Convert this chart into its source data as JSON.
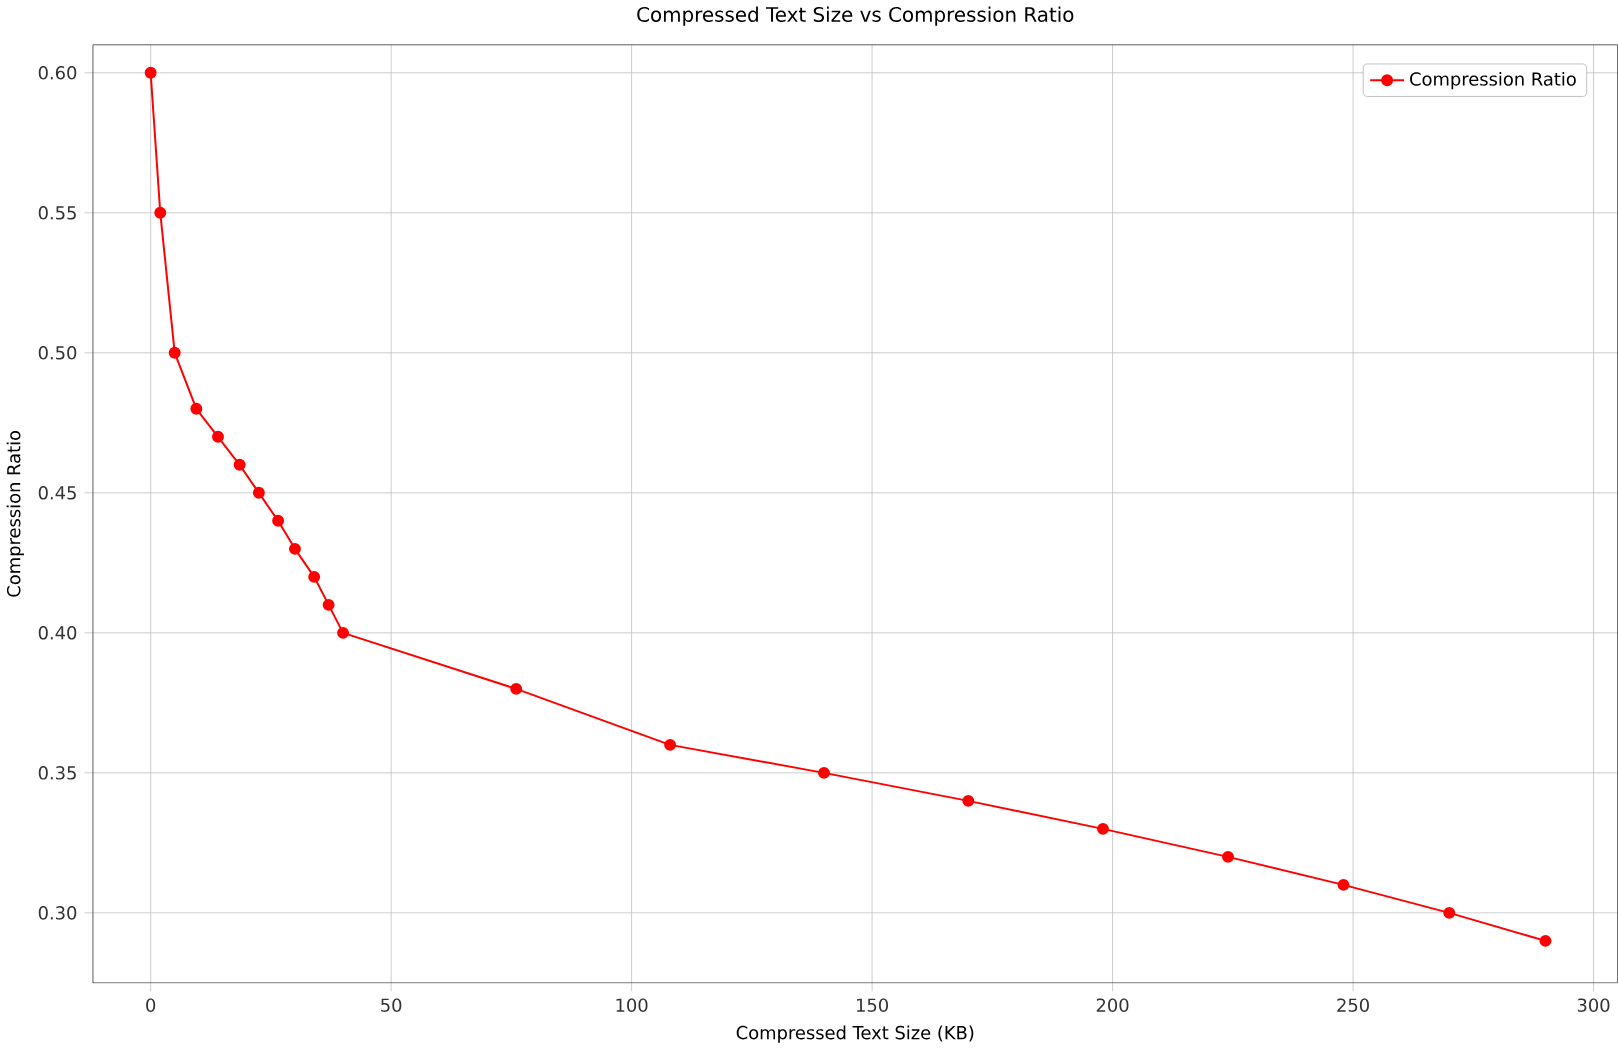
{
  "chart_data": {
    "type": "line",
    "title": "Compressed Text Size vs Compression Ratio",
    "xlabel": "Compressed Text Size (KB)",
    "ylabel": "Compression Ratio",
    "xlim": [
      -12,
      305
    ],
    "ylim": [
      0.275,
      0.61
    ],
    "xticks": [
      0,
      50,
      100,
      150,
      200,
      250,
      300
    ],
    "yticks": [
      {
        "value": 0.3,
        "label": "0.30"
      },
      {
        "value": 0.35,
        "label": "0.35"
      },
      {
        "value": 0.4,
        "label": "0.40"
      },
      {
        "value": 0.45,
        "label": "0.45"
      },
      {
        "value": 0.5,
        "label": "0.50"
      },
      {
        "value": 0.55,
        "label": "0.55"
      },
      {
        "value": 0.6,
        "label": "0.60"
      }
    ],
    "grid": true,
    "legend": "top right",
    "marker": "circle",
    "line_style": "solid",
    "series": [
      {
        "name": "Compression Ratio",
        "color": "#ff0000",
        "x": [
          0,
          2,
          5,
          9.5,
          14,
          18.5,
          22.5,
          26.5,
          30,
          34,
          37,
          40,
          76,
          108,
          140,
          170,
          198,
          224,
          248,
          270,
          290
        ],
        "values": [
          0.6,
          0.55,
          0.5,
          0.48,
          0.47,
          0.46,
          0.45,
          0.44,
          0.43,
          0.42,
          0.41,
          0.4,
          0.38,
          0.36,
          0.35,
          0.34,
          0.33,
          0.32,
          0.31,
          0.3,
          0.29
        ]
      }
    ]
  }
}
